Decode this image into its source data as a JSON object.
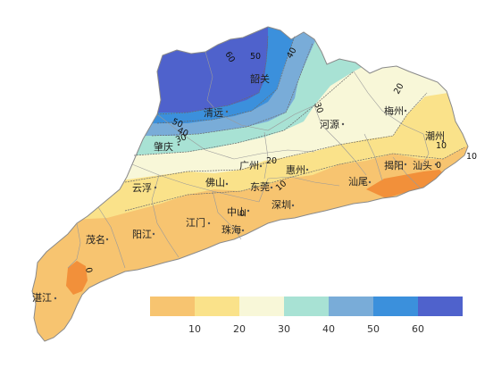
{
  "legend": {
    "bins": [
      {
        "color": "#f7c470"
      },
      {
        "color": "#fae28a"
      },
      {
        "color": "#f8f7d8"
      },
      {
        "color": "#a8e2d4"
      },
      {
        "color": "#79acd8"
      },
      {
        "color": "#3b90dc"
      },
      {
        "color": "#4f62cc"
      }
    ],
    "tick_labels": [
      "10",
      "20",
      "30",
      "40",
      "50",
      "60"
    ]
  },
  "cities": [
    {
      "key": "shaoguan",
      "name": "韶关"
    },
    {
      "key": "qingyuan",
      "name": "清远"
    },
    {
      "key": "heyuan",
      "name": "河源"
    },
    {
      "key": "meizhou",
      "name": "梅州"
    },
    {
      "key": "chaozhou",
      "name": "潮州"
    },
    {
      "key": "zhaoqing",
      "name": "肇庆"
    },
    {
      "key": "guangzhou",
      "name": "广州"
    },
    {
      "key": "huizhou",
      "name": "惠州"
    },
    {
      "key": "jieyang",
      "name": "揭阳"
    },
    {
      "key": "shantou",
      "name": "汕头"
    },
    {
      "key": "yunfu",
      "name": "云浮"
    },
    {
      "key": "foshan",
      "name": "佛山"
    },
    {
      "key": "dongguan",
      "name": "东莞"
    },
    {
      "key": "shanwei",
      "name": "汕尾"
    },
    {
      "key": "zhongshan",
      "name": "中山"
    },
    {
      "key": "shenzhen",
      "name": "深圳"
    },
    {
      "key": "jiangmen",
      "name": "江门"
    },
    {
      "key": "zhuhai",
      "name": "珠海"
    },
    {
      "key": "maoming",
      "name": "茂名"
    },
    {
      "key": "yangjiang",
      "name": "阳江"
    },
    {
      "key": "zhanjiang",
      "name": "湛江"
    }
  ],
  "contour_labels": [
    "60",
    "50",
    "40",
    "30",
    "50",
    "40",
    "30",
    "20",
    "10",
    "20",
    "10",
    "0",
    "0",
    "10",
    "0"
  ]
}
